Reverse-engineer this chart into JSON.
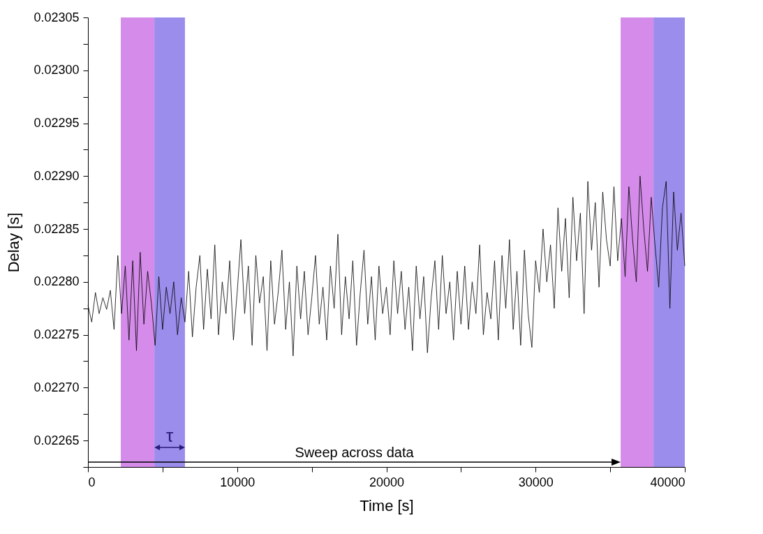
{
  "chart_data": {
    "type": "line",
    "xlabel": "Time [s]",
    "ylabel": "Delay [s]",
    "xlim": [
      0,
      40000
    ],
    "ylim": [
      0.022625,
      0.02305
    ],
    "xticks": [
      0,
      {
        "value": 5000,
        "label": null
      },
      10000,
      {
        "value": 15000,
        "label": null
      },
      20000,
      {
        "value": 25000,
        "label": null
      },
      30000,
      {
        "value": 35000,
        "label": null
      },
      40000
    ],
    "yticks": [
      {
        "value": 0.022625,
        "label": null
      },
      0.02265,
      {
        "value": 0.022675,
        "label": null
      },
      {
        "value": 0.0227,
        "label": "0.02270"
      },
      {
        "value": 0.022725,
        "label": null
      },
      0.02275,
      {
        "value": 0.022775,
        "label": null
      },
      {
        "value": 0.0228,
        "label": "0.02280"
      },
      {
        "value": 0.022825,
        "label": null
      },
      0.02285,
      {
        "value": 0.022875,
        "label": null
      },
      {
        "value": 0.0229,
        "label": "0.02290"
      },
      {
        "value": 0.022925,
        "label": null
      },
      0.02295,
      {
        "value": 0.022975,
        "label": null
      },
      {
        "value": 0.023,
        "label": "0.02300"
      },
      {
        "value": 0.023025,
        "label": null
      },
      0.02305
    ],
    "grid": false,
    "line_style": "solid",
    "marker": "none",
    "x": [
      0,
      250,
      500,
      750,
      1000,
      1250,
      1500,
      1750,
      2000,
      2250,
      2500,
      2750,
      3000,
      3250,
      3500,
      3750,
      4000,
      4250,
      4500,
      4750,
      5000,
      5250,
      5500,
      5750,
      6000,
      6250,
      6500,
      6750,
      7000,
      7250,
      7500,
      7750,
      8000,
      8250,
      8500,
      8750,
      9000,
      9250,
      9500,
      9750,
      10000,
      10250,
      10500,
      10750,
      11000,
      11250,
      11500,
      11750,
      12000,
      12250,
      12500,
      12750,
      13000,
      13250,
      13500,
      13750,
      14000,
      14250,
      14500,
      14750,
      15000,
      15250,
      15500,
      15750,
      16000,
      16250,
      16500,
      16750,
      17000,
      17250,
      17500,
      17750,
      18000,
      18250,
      18500,
      18750,
      19000,
      19250,
      19500,
      19750,
      20000,
      20250,
      20500,
      20750,
      21000,
      21250,
      21500,
      21750,
      22000,
      22250,
      22500,
      22750,
      23000,
      23250,
      23500,
      23750,
      24000,
      24250,
      24500,
      24750,
      25000,
      25250,
      25500,
      25750,
      26000,
      26250,
      26500,
      26750,
      27000,
      27250,
      27500,
      27750,
      28000,
      28250,
      28500,
      28750,
      29000,
      29250,
      29500,
      29750,
      30000,
      30250,
      30500,
      30750,
      31000,
      31250,
      31500,
      31750,
      32000,
      32250,
      32500,
      32750,
      33000,
      33250,
      33500,
      33750,
      34000,
      34250,
      34500,
      34750,
      35000,
      35250,
      35500,
      35750,
      36000,
      36250,
      36500,
      36750,
      37000,
      37250,
      37500,
      37750,
      38000,
      38250,
      38500,
      38750,
      39000,
      39250,
      39500,
      39750,
      40000
    ],
    "series": [
      {
        "color": "#000000",
        "values": [
          0.022778,
          0.022762,
          0.02279,
          0.02277,
          0.022785,
          0.022774,
          0.022792,
          0.022755,
          0.022825,
          0.02277,
          0.022815,
          0.022745,
          0.02282,
          0.022735,
          0.022828,
          0.02276,
          0.02281,
          0.02278,
          0.02274,
          0.022805,
          0.022755,
          0.022795,
          0.02277,
          0.0228,
          0.02275,
          0.022785,
          0.022762,
          0.02281,
          0.022748,
          0.022795,
          0.022825,
          0.022755,
          0.022812,
          0.022765,
          0.022835,
          0.02275,
          0.0228,
          0.02277,
          0.02282,
          0.022745,
          0.02279,
          0.02284,
          0.02277,
          0.022815,
          0.02274,
          0.022825,
          0.02278,
          0.022805,
          0.022735,
          0.02282,
          0.02276,
          0.02279,
          0.02283,
          0.022755,
          0.0228,
          0.02273,
          0.022815,
          0.022765,
          0.02281,
          0.02275,
          0.022785,
          0.022825,
          0.02276,
          0.022795,
          0.022745,
          0.022815,
          0.022775,
          0.022845,
          0.02275,
          0.022805,
          0.022765,
          0.02282,
          0.02274,
          0.02279,
          0.02283,
          0.02276,
          0.022805,
          0.022745,
          0.022815,
          0.02277,
          0.022795,
          0.02275,
          0.02282,
          0.02277,
          0.02281,
          0.022755,
          0.022795,
          0.022735,
          0.022815,
          0.022765,
          0.022805,
          0.022733,
          0.022785,
          0.02282,
          0.022755,
          0.022825,
          0.02277,
          0.0228,
          0.022745,
          0.02281,
          0.02276,
          0.022815,
          0.022755,
          0.0228,
          0.02277,
          0.022835,
          0.02275,
          0.02279,
          0.022765,
          0.02282,
          0.022745,
          0.022825,
          0.022775,
          0.02284,
          0.022755,
          0.02281,
          0.02274,
          0.02283,
          0.02277,
          0.022738,
          0.02282,
          0.02279,
          0.02285,
          0.0228,
          0.022835,
          0.022775,
          0.02287,
          0.02281,
          0.02286,
          0.022785,
          0.02288,
          0.02282,
          0.022865,
          0.02277,
          0.022895,
          0.02283,
          0.022875,
          0.022795,
          0.022885,
          0.02284,
          0.022815,
          0.02289,
          0.02282,
          0.02286,
          0.022805,
          0.02289,
          0.02284,
          0.0228,
          0.0229,
          0.02285,
          0.02281,
          0.02288,
          0.022835,
          0.022795,
          0.02287,
          0.022895,
          0.022775,
          0.022885,
          0.02283,
          0.022865,
          0.022815
        ]
      }
    ],
    "bands": [
      {
        "axis": "x",
        "from": 2200,
        "to": 4450,
        "color": "#d48be9"
      },
      {
        "axis": "x",
        "from": 4450,
        "to": 6500,
        "color": "#9b8deb"
      },
      {
        "axis": "x",
        "from": 35700,
        "to": 37900,
        "color": "#d48be9"
      },
      {
        "axis": "x",
        "from": 37900,
        "to": 40000,
        "color": "#9b8deb"
      }
    ],
    "annotations": [
      "Sweep across data",
      "τ"
    ]
  }
}
